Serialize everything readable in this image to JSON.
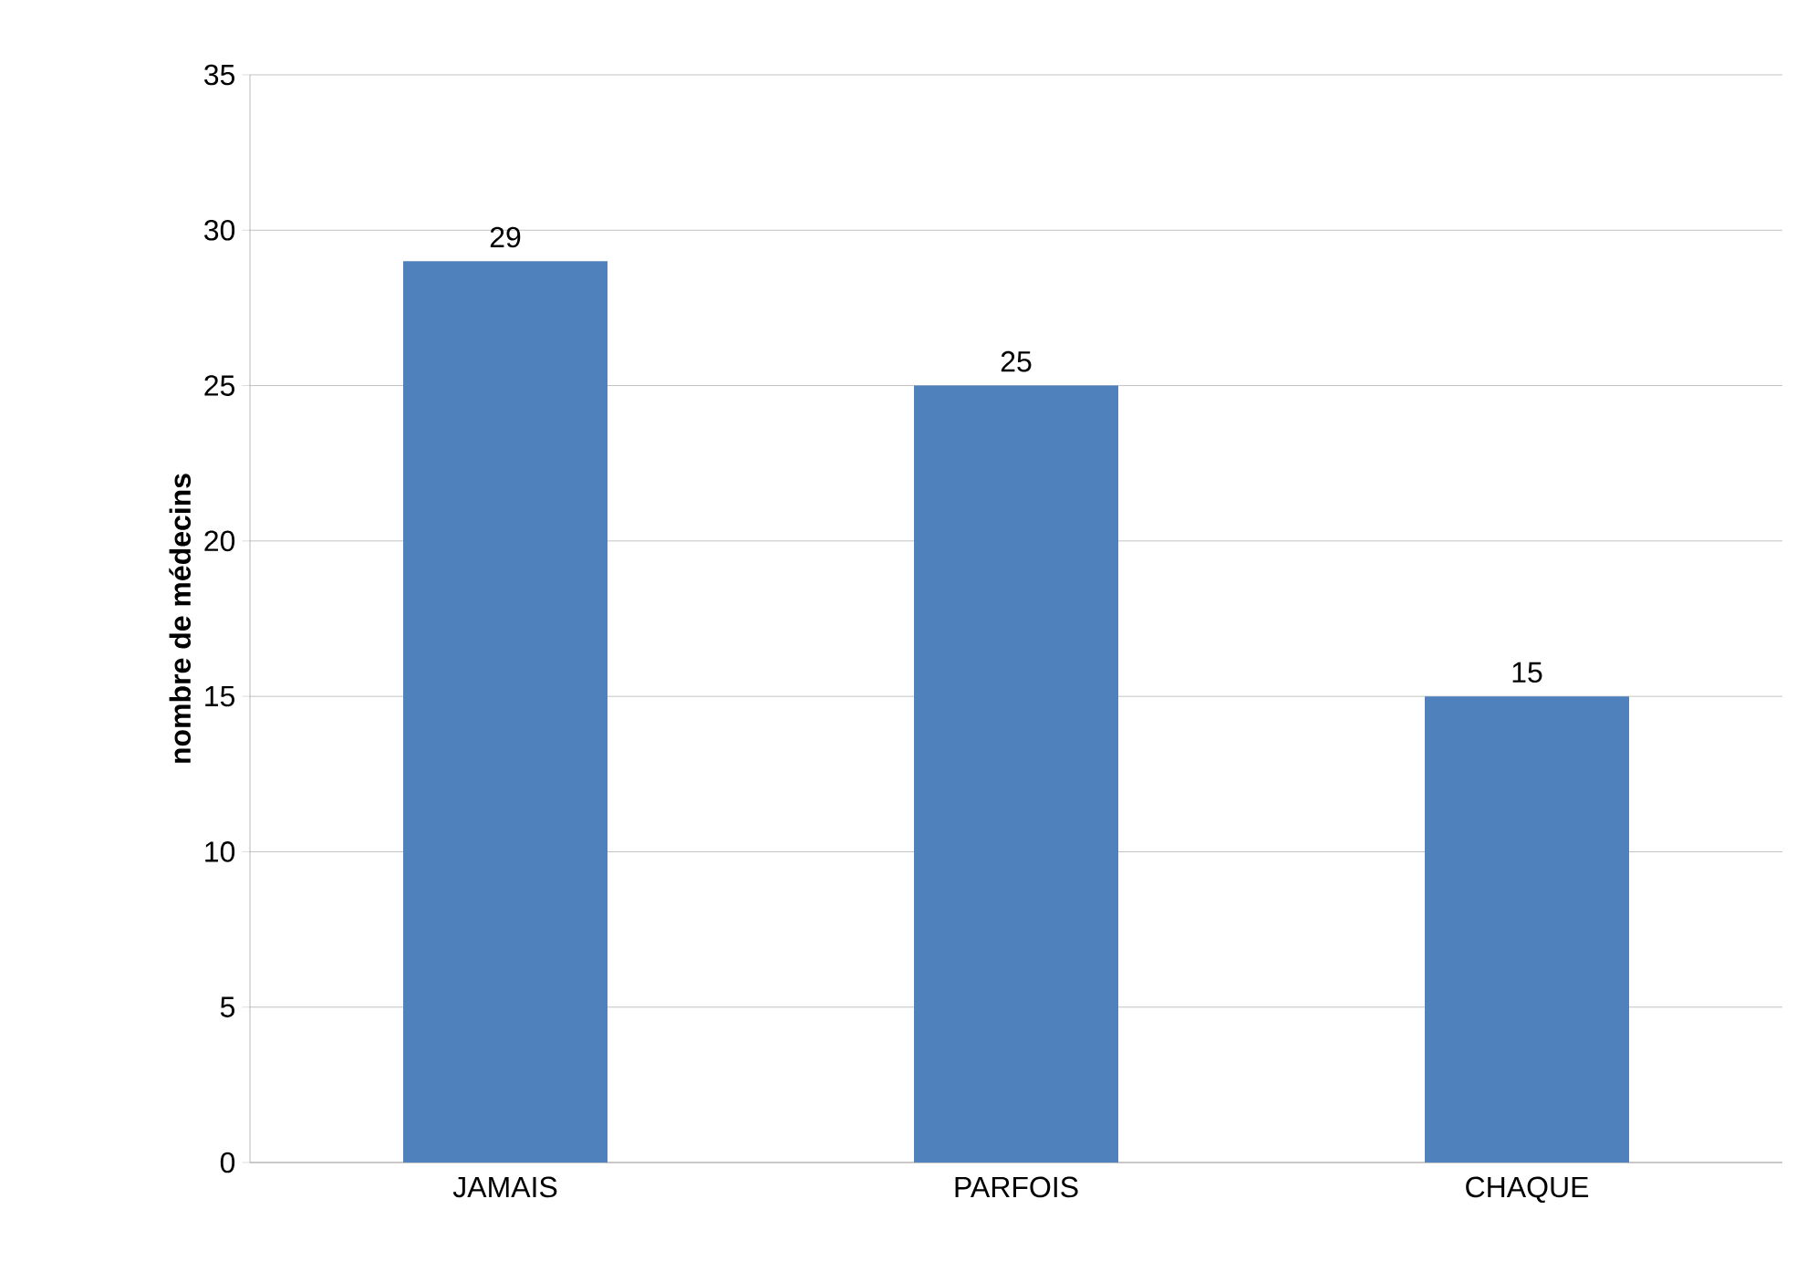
{
  "chart_data": {
    "type": "bar",
    "ylabel": "nombre de médecins",
    "categories": [
      "JAMAIS",
      "PARFOIS",
      "CHAQUE"
    ],
    "values": [
      29,
      25,
      15
    ],
    "color": "#4f81bd",
    "ylim": [
      0,
      35
    ],
    "yticks": [
      0,
      5,
      10,
      15,
      20,
      25,
      30,
      35
    ],
    "grid": "y",
    "data_labels": true
  }
}
